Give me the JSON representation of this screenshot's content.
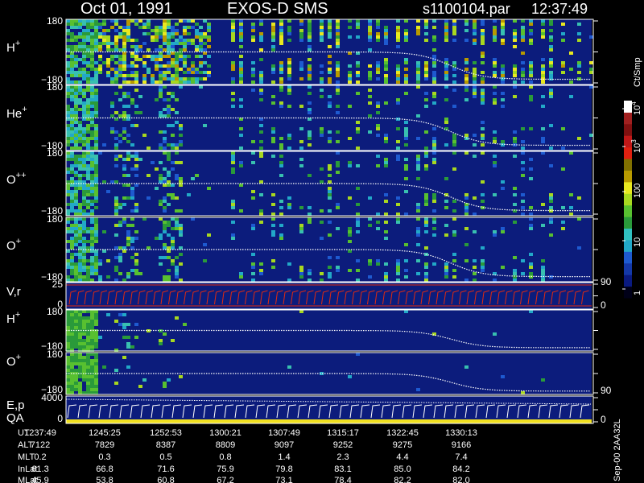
{
  "header": {
    "date": "Oct 01, 1991",
    "instrument": "EXOS-D SMS",
    "file": "s1100104.par",
    "time": "12:37:49"
  },
  "panels": [
    {
      "label": "H",
      "sup": "+",
      "top": "180",
      "bottom": "−180"
    },
    {
      "label": "He",
      "sup": "+",
      "top": "180",
      "bottom": "−180"
    },
    {
      "label": "O",
      "sup": "++",
      "top": "180",
      "bottom": "−180"
    },
    {
      "label": "O",
      "sup": "+",
      "top": "180",
      "bottom": "−180"
    },
    {
      "label": "V,r",
      "top": "25",
      "bottom": "0",
      "right_top": "90",
      "right_bottom": "0"
    },
    {
      "label": "H",
      "sup": "+",
      "top": "180",
      "bottom": "−180"
    },
    {
      "label": "O",
      "sup": "+",
      "top": "180",
      "bottom": "−180",
      "right_bottom": "90"
    },
    {
      "label": "E,p",
      "label2": "QA",
      "top": "4000",
      "bottom": "0",
      "right_bottom": "0"
    }
  ],
  "colorbar": {
    "title": "Ct/Smp",
    "labels": [
      {
        "base": "10",
        "sup": "4"
      },
      {
        "base": "10",
        "sup": "3"
      },
      {
        "base": "100"
      },
      {
        "base": "10"
      },
      {
        "base": "1"
      }
    ]
  },
  "footer": {
    "rows": [
      {
        "label": "UT",
        "values": [
          "1237:49",
          "1245:25",
          "1252:53",
          "1300:21",
          "1307:49",
          "1315:17",
          "1322:45",
          "1330:13"
        ]
      },
      {
        "label": "ALT",
        "values": [
          "7122",
          "7829",
          "8387",
          "8809",
          "9097",
          "9252",
          "9275",
          "9166"
        ]
      },
      {
        "label": "MLT",
        "values": [
          "0.2",
          "0.3",
          "0.5",
          "0.8",
          "1.4",
          "2.3",
          "4.4",
          "7.4"
        ]
      },
      {
        "label": "InLat",
        "values": [
          "61.3",
          "66.8",
          "71.6",
          "75.9",
          "79.8",
          "83.1",
          "85.0",
          "84.2"
        ]
      },
      {
        "label": "MLat",
        "values": [
          "45.9",
          "53.8",
          "60.8",
          "67.2",
          "73.1",
          "78.4",
          "82.2",
          "82.0"
        ]
      }
    ],
    "id": "Sep-00  2AA32L"
  }
}
